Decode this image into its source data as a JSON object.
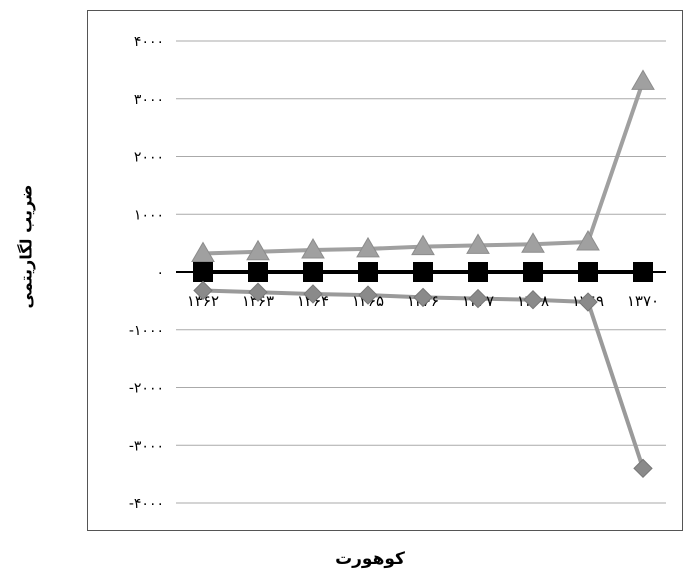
{
  "chart_data": {
    "type": "line",
    "xlabel": "کوهورت",
    "ylabel": "ضریب لگاریتمی",
    "categories": [
      "۱۳۶۲",
      "۱۳۶۳",
      "۱۳۶۴",
      "۱۳۶۵",
      "۱۳۶۶",
      "۱۳۶۷",
      "۱۳۶۸",
      "۱۳۶۹",
      "۱۳۷۰"
    ],
    "ylim": [
      -4000,
      4000
    ],
    "yticks": [
      4000,
      3000,
      2000,
      1000,
      0,
      -1000,
      -2000,
      -3000,
      -4000
    ],
    "ytick_labels": [
      "۴۰۰۰",
      "۳۰۰۰",
      "۲۰۰۰",
      "۱۰۰۰",
      "۰",
      "-۱۰۰۰",
      "-۲۰۰۰",
      "-۳۰۰۰",
      "-۴۰۰۰"
    ],
    "grid": true,
    "series": [
      {
        "marker": "triangle",
        "color": "#a0a0a0",
        "values": [
          320,
          350,
          380,
          400,
          440,
          460,
          480,
          520,
          3300
        ]
      },
      {
        "marker": "square",
        "color": "#000000",
        "values": [
          0,
          0,
          0,
          0,
          0,
          0,
          0,
          0,
          0
        ]
      },
      {
        "marker": "diamond",
        "color": "#9a9a9a",
        "values": [
          -320,
          -350,
          -380,
          -400,
          -440,
          -460,
          -480,
          -520,
          -3400
        ]
      }
    ]
  }
}
